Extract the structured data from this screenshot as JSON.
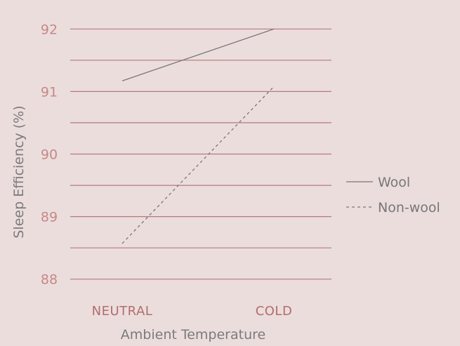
{
  "chart_data": {
    "type": "line",
    "categories": [
      "NEUTRAL",
      "COLD"
    ],
    "series": [
      {
        "name": "Wool",
        "values": [
          91.17,
          92.0
        ],
        "style": "solid"
      },
      {
        "name": "Non-wool",
        "values": [
          88.57,
          91.08
        ],
        "style": "dashed"
      }
    ],
    "xlabel": "Ambient Temperature",
    "ylabel": "Sleep Efficiency (%)",
    "ylim": [
      87.75,
      92.25
    ],
    "yticks": [
      88,
      89,
      90,
      91,
      92
    ],
    "grid": true,
    "legend_position": "right",
    "colors": {
      "background": "#ecdddd",
      "gridline": "#b57a7a",
      "line": "#777777",
      "tick_y": "#c48a86",
      "tick_x": "#b06e6c",
      "axis_title": "#7b7b7b"
    }
  }
}
